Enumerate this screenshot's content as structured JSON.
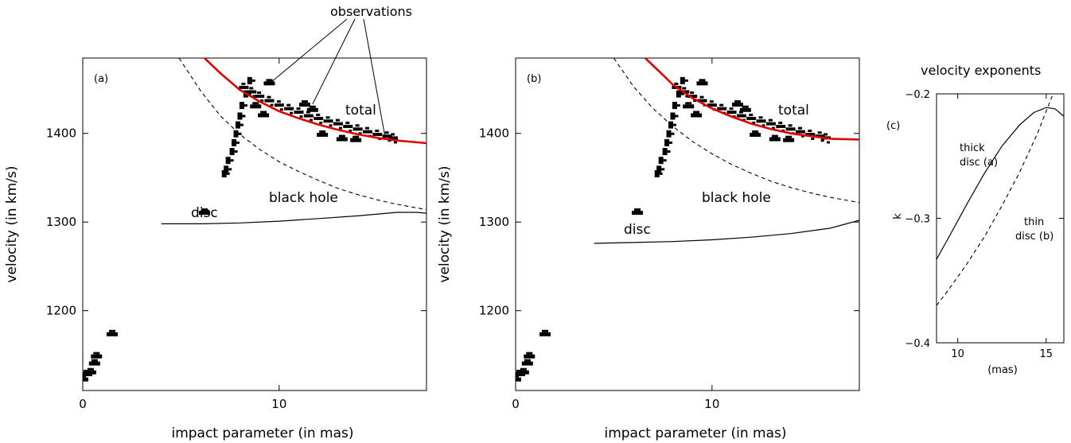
{
  "figure": {
    "observations_label": "observations"
  },
  "chart_data": [
    {
      "id": "a",
      "type": "scatter",
      "panel_label": "(a)",
      "xlabel": "impact parameter (in mas)",
      "ylabel": "velocity  (in km/s)",
      "xlim": [
        0,
        17.5
      ],
      "ylim": [
        1110,
        1485
      ],
      "x_ticks": [
        0,
        10
      ],
      "y_ticks": [
        1200,
        1300,
        1400
      ],
      "annotations": {
        "total": "total",
        "black_hole": "black hole",
        "disc": "disc"
      },
      "series": [
        {
          "key": "total",
          "style": "red-solid",
          "points": [
            [
              6.2,
              1485
            ],
            [
              7,
              1468
            ],
            [
              8,
              1449
            ],
            [
              9,
              1436
            ],
            [
              10,
              1425
            ],
            [
              11,
              1417
            ],
            [
              12,
              1410
            ],
            [
              13,
              1404
            ],
            [
              14,
              1399
            ],
            [
              15,
              1395
            ],
            [
              16,
              1392
            ],
            [
              17.5,
              1389
            ]
          ]
        },
        {
          "key": "black_hole",
          "style": "black-dashed",
          "points": [
            [
              4.9,
              1485
            ],
            [
              6,
              1448
            ],
            [
              7,
              1420
            ],
            [
              8,
              1399
            ],
            [
              9,
              1382
            ],
            [
              10,
              1368
            ],
            [
              11,
              1357
            ],
            [
              12,
              1347
            ],
            [
              13,
              1338
            ],
            [
              14,
              1331
            ],
            [
              15,
              1325
            ],
            [
              16,
              1320
            ],
            [
              17.5,
              1314
            ]
          ]
        },
        {
          "key": "disc",
          "style": "black-solid",
          "points": [
            [
              4,
              1298
            ],
            [
              6,
              1298
            ],
            [
              8,
              1299
            ],
            [
              10,
              1301
            ],
            [
              12,
              1304
            ],
            [
              14,
              1307
            ],
            [
              16,
              1311
            ],
            [
              17,
              1311
            ],
            [
              17.5,
              1310
            ]
          ]
        }
      ],
      "observations": {
        "main_arc": [
          [
            8.2,
            1451
          ],
          [
            8.6,
            1446
          ],
          [
            9,
            1441
          ],
          [
            9.5,
            1436
          ],
          [
            10,
            1431
          ],
          [
            10.5,
            1427
          ],
          [
            11,
            1423
          ],
          [
            11.5,
            1419
          ],
          [
            12,
            1416
          ],
          [
            12.5,
            1413
          ],
          [
            13,
            1410
          ],
          [
            13.5,
            1407
          ],
          [
            14,
            1404
          ],
          [
            14.5,
            1401
          ],
          [
            15,
            1398
          ],
          [
            15.5,
            1396
          ],
          [
            15.8,
            1394
          ]
        ],
        "vertical": [
          [
            8.5,
            1460
          ],
          [
            8.3,
            1445
          ],
          [
            8.1,
            1432
          ],
          [
            8,
            1420
          ],
          [
            7.9,
            1410
          ],
          [
            7.8,
            1400
          ],
          [
            7.7,
            1390
          ],
          [
            7.6,
            1380
          ],
          [
            7.4,
            1370
          ],
          [
            7.3,
            1360
          ],
          [
            7.2,
            1355
          ]
        ],
        "blobs": [
          [
            9.5,
            1456
          ],
          [
            8.8,
            1430
          ],
          [
            9.2,
            1420
          ],
          [
            11.3,
            1432
          ],
          [
            11.7,
            1426
          ],
          [
            12.2,
            1398
          ],
          [
            13.2,
            1393
          ],
          [
            13.9,
            1392
          ],
          [
            6.2,
            1310
          ],
          [
            1.5,
            1173
          ],
          [
            0.7,
            1148
          ],
          [
            0.6,
            1140
          ],
          [
            0.4,
            1130
          ],
          [
            0.2,
            1128
          ],
          [
            0,
            1122
          ],
          [
            -0.3,
            1118
          ]
        ]
      }
    },
    {
      "id": "b",
      "type": "scatter",
      "panel_label": "(b)",
      "xlabel": "impact parameter (in mas)",
      "ylabel": "velocity  (in km/s)",
      "xlim": [
        0,
        17.5
      ],
      "ylim": [
        1110,
        1485
      ],
      "x_ticks": [
        0,
        10
      ],
      "y_ticks": [
        1200,
        1300,
        1400
      ],
      "annotations": {
        "total": "total",
        "black_hole": "black hole",
        "disc": "disc"
      },
      "series": [
        {
          "key": "total",
          "style": "red-solid",
          "points": [
            [
              6.6,
              1485
            ],
            [
              7.5,
              1466
            ],
            [
              8,
              1455
            ],
            [
              9,
              1440
            ],
            [
              10,
              1428
            ],
            [
              11,
              1419
            ],
            [
              12,
              1411
            ],
            [
              13,
              1405
            ],
            [
              14,
              1400
            ],
            [
              15,
              1397
            ],
            [
              16,
              1394
            ],
            [
              17.5,
              1393
            ]
          ]
        },
        {
          "key": "black_hole",
          "style": "black-dashed",
          "points": [
            [
              5,
              1485
            ],
            [
              6,
              1453
            ],
            [
              7,
              1428
            ],
            [
              8,
              1408
            ],
            [
              9,
              1391
            ],
            [
              10,
              1377
            ],
            [
              11,
              1365
            ],
            [
              12,
              1355
            ],
            [
              13,
              1346
            ],
            [
              14,
              1339
            ],
            [
              15,
              1333
            ],
            [
              16,
              1328
            ],
            [
              17.5,
              1322
            ]
          ]
        },
        {
          "key": "disc",
          "style": "black-solid",
          "points": [
            [
              4,
              1276
            ],
            [
              6,
              1277
            ],
            [
              8,
              1278
            ],
            [
              10,
              1280
            ],
            [
              12,
              1283
            ],
            [
              14,
              1287
            ],
            [
              16,
              1293
            ],
            [
              17.5,
              1302
            ]
          ]
        }
      ],
      "observations": {
        "main_arc": [
          [
            8.2,
            1451
          ],
          [
            8.6,
            1446
          ],
          [
            9,
            1441
          ],
          [
            9.5,
            1436
          ],
          [
            10,
            1431
          ],
          [
            10.5,
            1427
          ],
          [
            11,
            1423
          ],
          [
            11.5,
            1419
          ],
          [
            12,
            1416
          ],
          [
            12.5,
            1413
          ],
          [
            13,
            1410
          ],
          [
            13.5,
            1407
          ],
          [
            14,
            1404
          ],
          [
            14.5,
            1401
          ],
          [
            15,
            1398
          ],
          [
            15.5,
            1396
          ],
          [
            15.8,
            1394
          ]
        ],
        "vertical": [
          [
            8.5,
            1460
          ],
          [
            8.3,
            1445
          ],
          [
            8.1,
            1432
          ],
          [
            8,
            1420
          ],
          [
            7.9,
            1410
          ],
          [
            7.8,
            1400
          ],
          [
            7.7,
            1390
          ],
          [
            7.6,
            1380
          ],
          [
            7.4,
            1370
          ],
          [
            7.3,
            1360
          ],
          [
            7.2,
            1355
          ]
        ],
        "blobs": [
          [
            9.5,
            1456
          ],
          [
            8.8,
            1430
          ],
          [
            9.2,
            1420
          ],
          [
            11.3,
            1432
          ],
          [
            11.7,
            1426
          ],
          [
            12.2,
            1398
          ],
          [
            13.2,
            1393
          ],
          [
            13.9,
            1392
          ],
          [
            6.2,
            1310
          ],
          [
            1.5,
            1173
          ],
          [
            0.7,
            1148
          ],
          [
            0.6,
            1140
          ],
          [
            0.4,
            1130
          ],
          [
            0.2,
            1128
          ],
          [
            0,
            1122
          ],
          [
            -0.3,
            1118
          ]
        ]
      }
    },
    {
      "id": "c",
      "type": "line",
      "panel_label": "(c)",
      "title": "velocity exponents",
      "xlabel": "(mas)",
      "ylabel": "k",
      "xlim": [
        8.8,
        16
      ],
      "ylim": [
        -0.4,
        -0.2
      ],
      "x_ticks": [
        10,
        15
      ],
      "y_ticks": [
        -0.4,
        -0.3,
        -0.2
      ],
      "y_tick_labels": [
        "−0.4",
        "−0.3",
        "−0.2"
      ],
      "annotations": {
        "thick_1": "thick",
        "thick_2": "disc (a)",
        "thin_1": "thin",
        "thin_2": "disc (b)"
      },
      "series": [
        {
          "key": "thick",
          "style": "black-solid",
          "points": [
            [
              8.8,
              -0.333
            ],
            [
              9.5,
              -0.315
            ],
            [
              10.5,
              -0.289
            ],
            [
              11.5,
              -0.264
            ],
            [
              12.5,
              -0.242
            ],
            [
              13.5,
              -0.225
            ],
            [
              14.3,
              -0.215
            ],
            [
              15,
              -0.211
            ],
            [
              15.5,
              -0.212
            ],
            [
              16,
              -0.218
            ]
          ]
        },
        {
          "key": "thin",
          "style": "black-dashed",
          "points": [
            [
              8.8,
              -0.37
            ],
            [
              9.5,
              -0.357
            ],
            [
              10.5,
              -0.337
            ],
            [
              11.5,
              -0.315
            ],
            [
              12.5,
              -0.29
            ],
            [
              13.5,
              -0.263
            ],
            [
              14.5,
              -0.232
            ],
            [
              15,
              -0.214
            ],
            [
              15.5,
              -0.196
            ]
          ]
        }
      ]
    }
  ]
}
